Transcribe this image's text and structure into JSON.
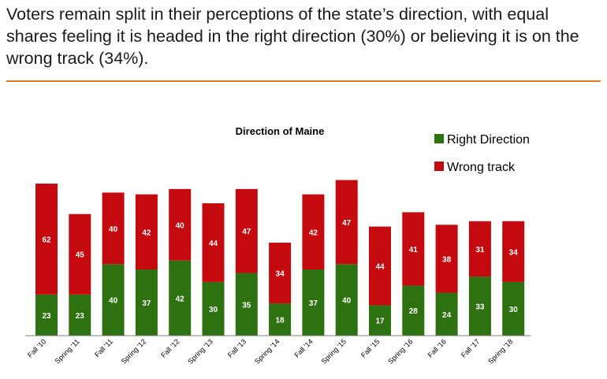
{
  "headline": "Voters remain split in their perceptions of the state’s direction, with equal shares feeling it is headed in the right direction (30%) or believing it is on the wrong track (34%).",
  "colors": {
    "right": "#2e7110",
    "wrong": "#c40a0f",
    "rule": "#e07b22"
  },
  "chart_data": {
    "type": "bar",
    "stacked": true,
    "title": "Direction of Maine",
    "categories": [
      "Fall '10",
      "Spring '11",
      "Fall '11",
      "Spring '12",
      "Fall '12",
      "Spring '13",
      "Fall '13",
      "Spring '14",
      "Fall '14",
      "Spring '15",
      "Fall '15",
      "Spring '16",
      "Fall '16",
      "Fall '17",
      "Spring '18"
    ],
    "series": [
      {
        "name": "Right Direction",
        "values": [
          23,
          23,
          40,
          37,
          42,
          30,
          35,
          18,
          37,
          40,
          17,
          28,
          24,
          33,
          30
        ]
      },
      {
        "name": "Wrong track",
        "values": [
          62,
          45,
          40,
          42,
          40,
          44,
          47,
          34,
          42,
          47,
          44,
          41,
          38,
          31,
          34
        ]
      }
    ],
    "legend_position": "top-right",
    "grid": false
  }
}
